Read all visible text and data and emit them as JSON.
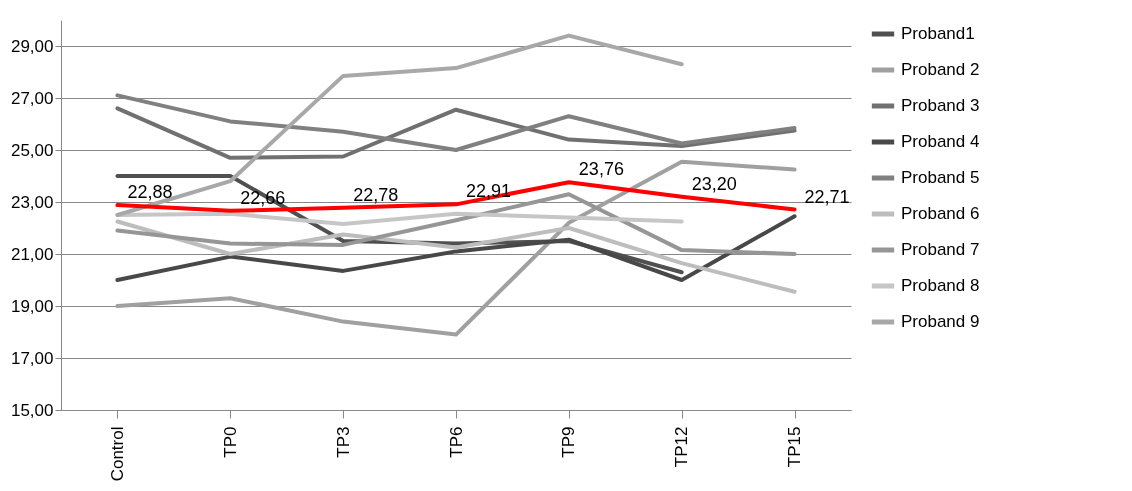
{
  "chart_data": {
    "type": "line",
    "categories": [
      "Control",
      "TP0",
      "TP3",
      "TP6",
      "TP9",
      "TP12",
      "TP15"
    ],
    "ylim": [
      15,
      30
    ],
    "yticks": [
      {
        "value": 15,
        "label": "15,00"
      },
      {
        "value": 17,
        "label": "17,00"
      },
      {
        "value": 19,
        "label": "19,00"
      },
      {
        "value": 21,
        "label": "21,00"
      },
      {
        "value": 23,
        "label": "23,00"
      },
      {
        "value": 25,
        "label": "25,00"
      },
      {
        "value": 27,
        "label": "27,00"
      },
      {
        "value": 29,
        "label": "29,00"
      }
    ],
    "grid": "y",
    "legend": "right",
    "marker": "none",
    "line_style": "solid",
    "series": [
      {
        "name": "Proband1",
        "color": "#505050",
        "values": [
          24.0,
          24.0,
          21.5,
          21.4,
          21.5,
          20.3,
          null
        ]
      },
      {
        "name": "Proband 2",
        "color": "#a0a0a0",
        "values": [
          19.0,
          19.3,
          18.4,
          17.9,
          22.2,
          24.55,
          24.25
        ]
      },
      {
        "name": "Proband 3",
        "color": "#707070",
        "values": [
          26.6,
          24.7,
          24.75,
          26.55,
          25.4,
          25.15,
          25.75
        ]
      },
      {
        "name": "Proband 4",
        "color": "#484848",
        "values": [
          20.0,
          20.9,
          20.35,
          21.1,
          21.55,
          20.0,
          22.45
        ]
      },
      {
        "name": "Proband 5",
        "color": "#808080",
        "values": [
          27.1,
          26.1,
          25.7,
          25.0,
          26.3,
          25.25,
          25.85
        ]
      },
      {
        "name": "Proband 6",
        "color": "#bdbdbd",
        "values": [
          22.25,
          21.0,
          21.75,
          21.25,
          22.0,
          20.65,
          19.55
        ]
      },
      {
        "name": "Proband 7",
        "color": "#969696",
        "values": [
          21.9,
          21.4,
          21.35,
          22.3,
          23.3,
          21.15,
          21.0
        ]
      },
      {
        "name": "Proband 8",
        "color": "#c6c6c6",
        "values": [
          22.5,
          22.55,
          22.15,
          22.55,
          22.4,
          22.25,
          null
        ]
      },
      {
        "name": "Proband 9",
        "color": "#a8a8a8",
        "values": [
          22.5,
          23.8,
          27.85,
          28.15,
          29.4,
          28.3,
          null
        ]
      },
      {
        "color": "#ff0000",
        "values": [
          22.88,
          22.66,
          22.78,
          22.91,
          23.76,
          23.2,
          22.71
        ],
        "value_labels": [
          "22,88",
          "22,66",
          "22,78",
          "22,91",
          "23,76",
          "23,20",
          "22,71"
        ]
      }
    ]
  }
}
